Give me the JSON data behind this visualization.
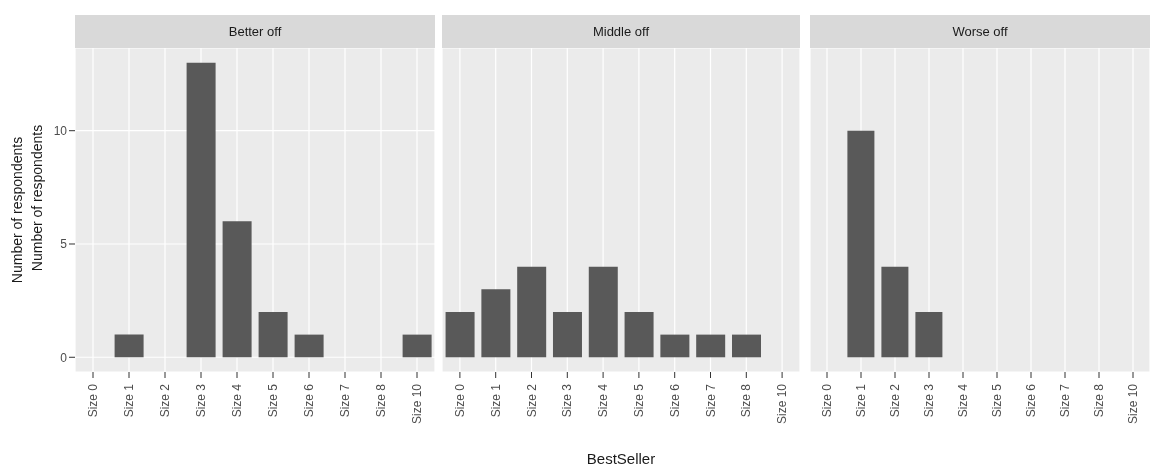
{
  "chart_data": [
    {
      "type": "bar",
      "title": "Better off",
      "ylabel": "Number of respondents",
      "annotations": [
        "Number of respondents"
      ],
      "categories": [
        "Size 0",
        "Size 1",
        "Size 2",
        "Size 3",
        "Size 4",
        "Size 5",
        "Size 6",
        "Size 7",
        "Size 8",
        "Size 10"
      ],
      "values": [
        0,
        1,
        0,
        13,
        6,
        2,
        1,
        0,
        0,
        1
      ],
      "color": "#595959",
      "ylim": [
        -0.65,
        13.65
      ],
      "yticks": [
        0,
        5,
        10
      ],
      "grid": true
    },
    {
      "type": "bar",
      "title": "Middle off",
      "xlabel": "BestSeller",
      "categories": [
        "Size 0",
        "Size 1",
        "Size 2",
        "Size 3",
        "Size 4",
        "Size 5",
        "Size 6",
        "Size 7",
        "Size 8",
        "Size 10"
      ],
      "values": [
        2,
        3,
        4,
        2,
        4,
        2,
        1,
        1,
        1,
        0
      ],
      "color": "#595959",
      "ylim": [
        -0.65,
        13.65
      ],
      "yticks": [
        0,
        5,
        10
      ],
      "grid": true,
      "tick_labels": "x"
    },
    {
      "type": "bar",
      "title": "Worse off",
      "categories": [
        "Size 0",
        "Size 1",
        "Size 2",
        "Size 3",
        "Size 4",
        "Size 5",
        "Size 6",
        "Size 7",
        "Size 8",
        "Size 10"
      ],
      "values": [
        0,
        10,
        4,
        2,
        0,
        0,
        0,
        0,
        0,
        0
      ],
      "color": "#595959",
      "ylim": [
        -0.65,
        13.65
      ],
      "yticks": [
        0,
        5,
        10
      ],
      "grid": true,
      "tick_labels": "x"
    }
  ]
}
